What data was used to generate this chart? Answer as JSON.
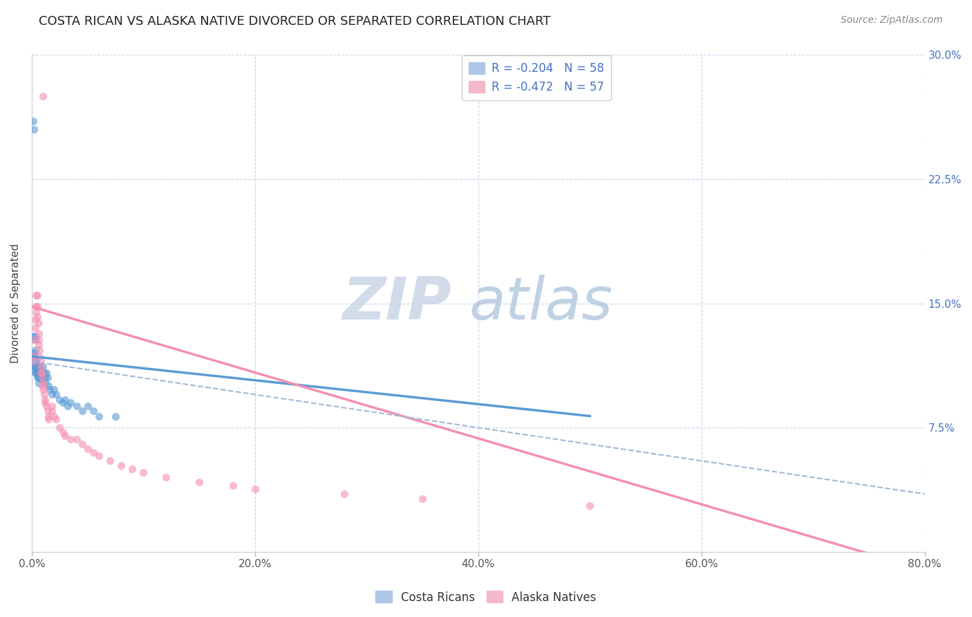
{
  "title": "COSTA RICAN VS ALASKA NATIVE DIVORCED OR SEPARATED CORRELATION CHART",
  "source": "Source: ZipAtlas.com",
  "ylabel": "Divorced or Separated",
  "xlabel": "",
  "watermark": "ZIPatlas",
  "xlim": [
    0,
    0.8
  ],
  "ylim": [
    0,
    0.3
  ],
  "xticks": [
    0.0,
    0.2,
    0.4,
    0.6,
    0.8
  ],
  "yticks_right": [
    0.0,
    0.075,
    0.15,
    0.225,
    0.3
  ],
  "ytick_labels_right": [
    "",
    "7.5%",
    "15.0%",
    "22.5%",
    "30.0%"
  ],
  "xtick_labels": [
    "0.0%",
    "20.0%",
    "40.0%",
    "60.0%",
    "80.0%"
  ],
  "legend_label_bottom": [
    "Costa Ricans",
    "Alaska Natives"
  ],
  "blue_color": "#5b9bd5",
  "pink_color": "#f48fb1",
  "blue_scatter": [
    [
      0.001,
      0.13
    ],
    [
      0.002,
      0.118
    ],
    [
      0.001,
      0.11
    ],
    [
      0.002,
      0.112
    ],
    [
      0.001,
      0.115
    ],
    [
      0.002,
      0.118
    ],
    [
      0.002,
      0.12
    ],
    [
      0.003,
      0.122
    ],
    [
      0.003,
      0.112
    ],
    [
      0.003,
      0.108
    ],
    [
      0.003,
      0.128
    ],
    [
      0.003,
      0.13
    ],
    [
      0.004,
      0.115
    ],
    [
      0.004,
      0.108
    ],
    [
      0.004,
      0.115
    ],
    [
      0.004,
      0.113
    ],
    [
      0.005,
      0.11
    ],
    [
      0.005,
      0.112
    ],
    [
      0.005,
      0.108
    ],
    [
      0.005,
      0.105
    ],
    [
      0.006,
      0.11
    ],
    [
      0.006,
      0.108
    ],
    [
      0.006,
      0.105
    ],
    [
      0.006,
      0.102
    ],
    [
      0.007,
      0.108
    ],
    [
      0.007,
      0.105
    ],
    [
      0.007,
      0.112
    ],
    [
      0.008,
      0.11
    ],
    [
      0.008,
      0.108
    ],
    [
      0.008,
      0.105
    ],
    [
      0.009,
      0.108
    ],
    [
      0.009,
      0.105
    ],
    [
      0.01,
      0.108
    ],
    [
      0.01,
      0.105
    ],
    [
      0.01,
      0.112
    ],
    [
      0.011,
      0.108
    ],
    [
      0.012,
      0.105
    ],
    [
      0.012,
      0.102
    ],
    [
      0.013,
      0.108
    ],
    [
      0.014,
      0.105
    ],
    [
      0.015,
      0.1
    ],
    [
      0.016,
      0.098
    ],
    [
      0.018,
      0.095
    ],
    [
      0.02,
      0.098
    ],
    [
      0.022,
      0.095
    ],
    [
      0.025,
      0.092
    ],
    [
      0.028,
      0.09
    ],
    [
      0.03,
      0.092
    ],
    [
      0.032,
      0.088
    ],
    [
      0.035,
      0.09
    ],
    [
      0.04,
      0.088
    ],
    [
      0.045,
      0.085
    ],
    [
      0.05,
      0.088
    ],
    [
      0.055,
      0.085
    ],
    [
      0.06,
      0.082
    ],
    [
      0.075,
      0.082
    ],
    [
      0.001,
      0.26
    ],
    [
      0.002,
      0.255
    ]
  ],
  "pink_scatter": [
    [
      0.001,
      0.115
    ],
    [
      0.002,
      0.118
    ],
    [
      0.002,
      0.128
    ],
    [
      0.003,
      0.135
    ],
    [
      0.003,
      0.14
    ],
    [
      0.004,
      0.148
    ],
    [
      0.004,
      0.155
    ],
    [
      0.004,
      0.145
    ],
    [
      0.005,
      0.148
    ],
    [
      0.005,
      0.155
    ],
    [
      0.005,
      0.142
    ],
    [
      0.006,
      0.138
    ],
    [
      0.006,
      0.132
    ],
    [
      0.006,
      0.128
    ],
    [
      0.006,
      0.125
    ],
    [
      0.007,
      0.122
    ],
    [
      0.007,
      0.118
    ],
    [
      0.008,
      0.115
    ],
    [
      0.008,
      0.112
    ],
    [
      0.008,
      0.108
    ],
    [
      0.009,
      0.108
    ],
    [
      0.009,
      0.105
    ],
    [
      0.01,
      0.102
    ],
    [
      0.01,
      0.1
    ],
    [
      0.01,
      0.098
    ],
    [
      0.011,
      0.095
    ],
    [
      0.012,
      0.092
    ],
    [
      0.012,
      0.09
    ],
    [
      0.013,
      0.088
    ],
    [
      0.014,
      0.085
    ],
    [
      0.015,
      0.082
    ],
    [
      0.015,
      0.08
    ],
    [
      0.018,
      0.088
    ],
    [
      0.018,
      0.085
    ],
    [
      0.02,
      0.082
    ],
    [
      0.022,
      0.08
    ],
    [
      0.025,
      0.075
    ],
    [
      0.028,
      0.072
    ],
    [
      0.03,
      0.07
    ],
    [
      0.035,
      0.068
    ],
    [
      0.04,
      0.068
    ],
    [
      0.045,
      0.065
    ],
    [
      0.05,
      0.062
    ],
    [
      0.055,
      0.06
    ],
    [
      0.06,
      0.058
    ],
    [
      0.07,
      0.055
    ],
    [
      0.08,
      0.052
    ],
    [
      0.09,
      0.05
    ],
    [
      0.1,
      0.048
    ],
    [
      0.12,
      0.045
    ],
    [
      0.15,
      0.042
    ],
    [
      0.18,
      0.04
    ],
    [
      0.2,
      0.038
    ],
    [
      0.28,
      0.035
    ],
    [
      0.35,
      0.032
    ],
    [
      0.5,
      0.028
    ],
    [
      0.01,
      0.275
    ]
  ],
  "blue_line": {
    "x0": 0.0,
    "y0": 0.118,
    "x1": 0.5,
    "y1": 0.082
  },
  "pink_line": {
    "x0": 0.0,
    "y0": 0.148,
    "x1": 0.76,
    "y1": -0.003
  },
  "dash_line": {
    "x0": 0.0,
    "y0": 0.115,
    "x1": 0.8,
    "y1": 0.035
  },
  "background_color": "#ffffff",
  "grid_color": "#c8d4e8",
  "watermark_color": "#ccd8e8",
  "title_fontsize": 13,
  "source_fontsize": 10,
  "axis_label_fontsize": 11,
  "tick_fontsize": 11,
  "legend_fontsize": 12,
  "scatter_size": 65,
  "scatter_alpha": 0.6
}
